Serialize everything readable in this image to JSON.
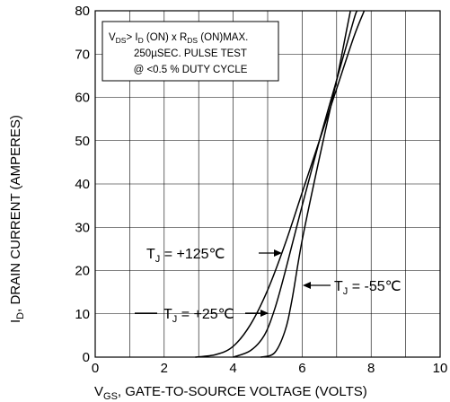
{
  "chart_data": {
    "type": "line",
    "xlabel": {
      "prefix": "V",
      "sub": "GS",
      "rest": ", GATE-TO-SOURCE VOLTAGE (VOLTS)"
    },
    "ylabel": {
      "prefix": "I",
      "sub": "D",
      "rest": ", DRAIN  CURRENT (AMPERES)"
    },
    "xlim": [
      0,
      10
    ],
    "ylim": [
      0,
      80
    ],
    "x_ticks": [
      "0",
      "2",
      "4",
      "6",
      "8",
      "10"
    ],
    "y_ticks": [
      "0",
      "10",
      "20",
      "30",
      "40",
      "50",
      "60",
      "70",
      "80"
    ],
    "grid": true,
    "annotation_box": {
      "line1": {
        "v": "V",
        "v_sub": "DS",
        "gt": "> I",
        "i_sub": "D",
        "on": " (ON) x  R",
        "r_sub": "DS",
        "max": " (ON)MAX."
      },
      "line2": "250µSEC. PULSE TEST",
      "line3": "@ <0.5 % DUTY CYCLE"
    },
    "series": [
      {
        "name": "T_J = +125°C",
        "callout": {
          "t": "T",
          "sub": "J",
          "text": " = +125℃"
        },
        "points": [
          [
            2.9,
            0
          ],
          [
            3.5,
            0.6
          ],
          [
            4.0,
            2.5
          ],
          [
            4.5,
            7.5
          ],
          [
            5.0,
            15.5
          ],
          [
            5.5,
            26
          ],
          [
            6.0,
            38
          ],
          [
            6.5,
            50
          ],
          [
            7.0,
            62
          ],
          [
            7.5,
            74
          ],
          [
            7.8,
            80
          ]
        ]
      },
      {
        "name": "T_J = +25°C",
        "callout": {
          "t": "T",
          "sub": "J",
          "text": " = +25℃"
        },
        "points": [
          [
            4.0,
            0
          ],
          [
            4.5,
            1.5
          ],
          [
            4.9,
            5
          ],
          [
            5.2,
            11
          ],
          [
            5.5,
            19.5
          ],
          [
            6.0,
            35
          ],
          [
            6.5,
            50
          ],
          [
            7.0,
            64
          ],
          [
            7.5,
            78
          ],
          [
            7.6,
            80
          ]
        ]
      },
      {
        "name": "T_J = -55°C",
        "callout": {
          "t": "T",
          "sub": "J",
          "text": " = -55℃"
        },
        "points": [
          [
            4.8,
            0
          ],
          [
            5.2,
            1
          ],
          [
            5.5,
            6
          ],
          [
            5.7,
            13
          ],
          [
            6.0,
            27
          ],
          [
            6.5,
            46
          ],
          [
            7.0,
            64
          ],
          [
            7.3,
            76
          ],
          [
            7.4,
            80
          ]
        ]
      }
    ]
  }
}
